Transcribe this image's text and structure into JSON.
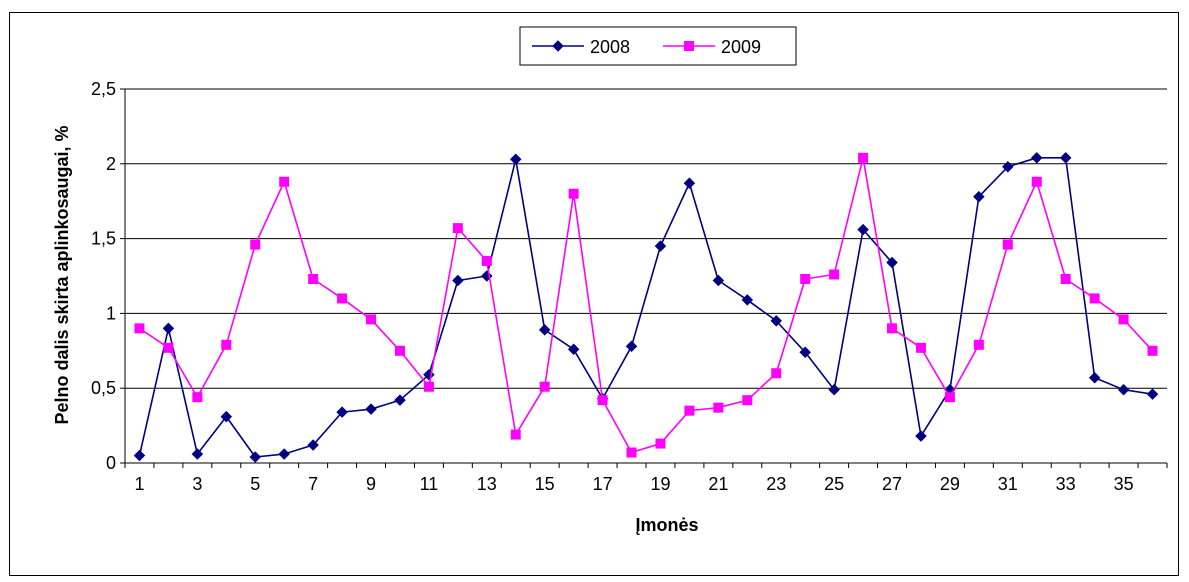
{
  "chart_data": {
    "type": "line",
    "xlabel": "Įmonės",
    "ylabel": "Pelno dalis skirta aplinkosaugai, %",
    "ylim": [
      0,
      2.5
    ],
    "yticks": [
      "0",
      "0,5",
      "1",
      "1,5",
      "2",
      "2,5"
    ],
    "ytick_values": [
      0,
      0.5,
      1,
      1.5,
      2,
      2.5
    ],
    "xtick_labels": [
      "1",
      "3",
      "5",
      "7",
      "9",
      "11",
      "13",
      "15",
      "17",
      "19",
      "21",
      "23",
      "25",
      "27",
      "29",
      "31",
      "33",
      "35"
    ],
    "x": [
      1,
      2,
      3,
      4,
      5,
      6,
      7,
      8,
      9,
      10,
      11,
      12,
      13,
      14,
      15,
      16,
      17,
      18,
      19,
      20,
      21,
      22,
      23,
      24,
      25,
      26,
      27,
      28,
      29,
      30,
      31,
      32,
      33,
      34,
      35,
      36
    ],
    "grid": "horizontal",
    "legend_position": "top",
    "series": [
      {
        "name": "2008",
        "color": "#000080",
        "marker": "diamond",
        "values": [
          0.05,
          0.9,
          0.06,
          0.31,
          0.04,
          0.06,
          0.12,
          0.34,
          0.36,
          0.42,
          0.59,
          1.22,
          1.25,
          2.03,
          0.89,
          0.76,
          0.43,
          0.78,
          1.45,
          1.87,
          1.22,
          1.09,
          0.95,
          0.74,
          0.49,
          1.56,
          1.34,
          0.18,
          0.49,
          1.78,
          1.98,
          2.04,
          2.04,
          0.57,
          0.49,
          0.46
        ]
      },
      {
        "name": "2009",
        "color": "#ff00ff",
        "marker": "square",
        "values": [
          0.9,
          0.77,
          0.44,
          0.79,
          1.46,
          1.88,
          1.23,
          1.1,
          0.96,
          0.75,
          0.51,
          1.57,
          1.35,
          0.19,
          0.51,
          1.8,
          0.42,
          0.07,
          0.13,
          0.35,
          0.37,
          0.42,
          0.6,
          1.23,
          1.26,
          2.04,
          0.9,
          0.77,
          0.44,
          0.79,
          1.46,
          1.88,
          1.23,
          1.1,
          0.96,
          0.75
        ]
      }
    ]
  }
}
